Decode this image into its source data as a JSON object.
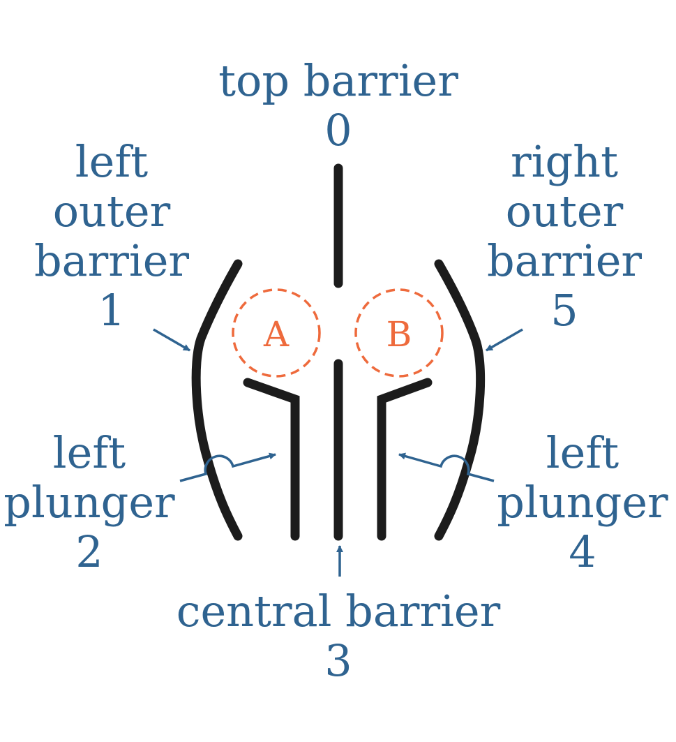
{
  "colors": {
    "label": "#2f6390",
    "barrier": "#1c1c1c",
    "chamber": "#ee6a3c"
  },
  "labels": {
    "top": {
      "line1": "top barrier",
      "number": "0"
    },
    "left_outer": {
      "line1": "left",
      "line2": "outer",
      "line3": "barrier",
      "number": "1"
    },
    "left_plunger": {
      "line1": "left",
      "line2": "plunger",
      "number": "2"
    },
    "central": {
      "line1": "central barrier",
      "number": "3"
    },
    "right_plunger": {
      "line1": "left",
      "line2": "plunger",
      "number": "4"
    },
    "right_outer": {
      "line1": "right",
      "line2": "outer",
      "line3": "barrier",
      "number": "5"
    }
  },
  "chambers": [
    {
      "letter": "A"
    },
    {
      "letter": "B"
    }
  ]
}
